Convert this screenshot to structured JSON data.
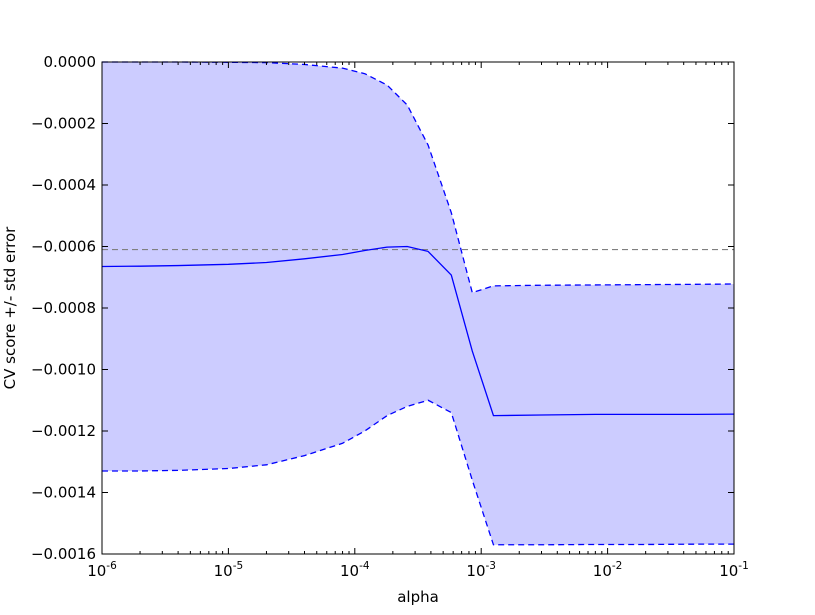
{
  "chart_data": {
    "type": "line",
    "title": "",
    "xlabel": "alpha",
    "ylabel": "CV score +/- std error",
    "xscale": "log",
    "xlim": [
      1e-06,
      0.1
    ],
    "ylim": [
      -0.0016,
      0.0
    ],
    "grid": false,
    "legend": "none",
    "x_ticks": [
      {
        "base": "10",
        "exp": "-6",
        "value": 1e-06
      },
      {
        "base": "10",
        "exp": "-5",
        "value": 1e-05
      },
      {
        "base": "10",
        "exp": "-4",
        "value": 0.0001
      },
      {
        "base": "10",
        "exp": "-3",
        "value": 0.001
      },
      {
        "base": "10",
        "exp": "-2",
        "value": 0.01
      },
      {
        "base": "10",
        "exp": "-1",
        "value": 0.1
      }
    ],
    "y_ticks": [
      {
        "label": "0.0000",
        "value": 0.0
      },
      {
        "label": "−0.0002",
        "value": -0.0002
      },
      {
        "label": "−0.0004",
        "value": -0.0004
      },
      {
        "label": "−0.0006",
        "value": -0.0006
      },
      {
        "label": "−0.0008",
        "value": -0.0008
      },
      {
        "label": "−0.0010",
        "value": -0.001
      },
      {
        "label": "−0.0012",
        "value": -0.0012
      },
      {
        "label": "−0.0014",
        "value": -0.0014
      },
      {
        "label": "−0.0016",
        "value": -0.0016
      }
    ],
    "x": [
      1e-06,
      2e-06,
      4e-06,
      1e-05,
      2e-05,
      4e-05,
      8e-05,
      0.00012,
      0.00018,
      0.00026,
      0.00038,
      0.00058,
      0.00085,
      0.00125,
      0.003,
      0.008,
      0.02,
      0.05,
      0.1
    ],
    "series": [
      {
        "role": "mean",
        "style": "solid",
        "color": "#0000ff",
        "values": [
          -0.000665,
          -0.000664,
          -0.000662,
          -0.000658,
          -0.000652,
          -0.00064,
          -0.000626,
          -0.000613,
          -0.000602,
          -0.0006,
          -0.000616,
          -0.000693,
          -0.00094,
          -0.00115,
          -0.001148,
          -0.001146,
          -0.001146,
          -0.001146,
          -0.001145
        ]
      },
      {
        "role": "upper",
        "style": "dashed",
        "color": "#0000ff",
        "values": [
          0.0,
          0.0,
          0.0,
          -1e-06,
          -2e-06,
          -8e-06,
          -2e-05,
          -3.8e-05,
          -7.5e-05,
          -0.00014,
          -0.00027,
          -0.00049,
          -0.00075,
          -0.000728,
          -0.000726,
          -0.000725,
          -0.000724,
          -0.000723,
          -0.000722
        ]
      },
      {
        "role": "lower",
        "style": "dashed",
        "color": "#0000ff",
        "values": [
          -0.00133,
          -0.00133,
          -0.001328,
          -0.001322,
          -0.00131,
          -0.00128,
          -0.00124,
          -0.0012,
          -0.00115,
          -0.00112,
          -0.0011,
          -0.00114,
          -0.00136,
          -0.00157,
          -0.00157,
          -0.001569,
          -0.001569,
          -0.001568,
          -0.001568
        ]
      }
    ],
    "band_fill_color": "#ccccff",
    "reference_line": {
      "y": -0.00061,
      "style": "dashed",
      "color": "#808080"
    }
  }
}
